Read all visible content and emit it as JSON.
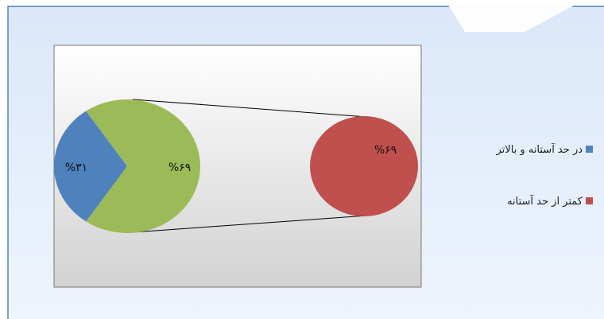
{
  "chart_data": {
    "type": "pie",
    "subtype": "pie-of-pie",
    "main_pie": {
      "slices": [
        {
          "legend_key": "legend.items.0",
          "label": "%۳۱",
          "value": 31,
          "color": "#4f81bd"
        },
        {
          "legend_key": "legend.items.1",
          "label": "%۶۹",
          "value": 69,
          "color": "#9bbb59"
        }
      ]
    },
    "secondary_pie": {
      "slices": [
        {
          "label": "%۶۹",
          "value": 69,
          "color": "#c0504d"
        }
      ]
    },
    "legend_position": "right"
  },
  "legend": {
    "items": [
      {
        "label": "در حد آستانه و بالاتر",
        "color": "#4f81bd"
      },
      {
        "label": "کمتر از حد آستانه",
        "color": "#c0504d"
      }
    ]
  },
  "colors": {
    "frame_border": "#4f81bd",
    "frame_bg_top": "#dbe8f9",
    "frame_bg_bottom": "#eef4fd",
    "plot_bg_top": "#ffffff",
    "plot_bg_bottom": "#d2d2d2",
    "connector": "#000000"
  }
}
